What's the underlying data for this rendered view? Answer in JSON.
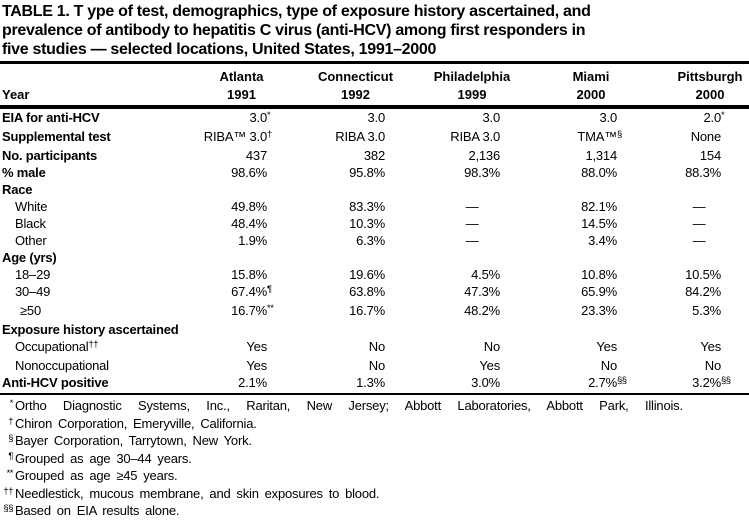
{
  "colors": {
    "text": "#000000",
    "background": "#ffffff",
    "rule": "#000000"
  },
  "table": {
    "title_lines": [
      "TABLE 1. T ype of test, demographics, type of exposure history ascertained, and",
      "prevalence of antibody to hepatitis C virus (anti-HCV) among first responders in",
      "five studies — selected locations, United States, 1991–2000"
    ],
    "row_header_label": "Year",
    "columns": [
      {
        "location": "Atlanta",
        "year": "1991"
      },
      {
        "location": "Connecticut",
        "year": "1992"
      },
      {
        "location": "Philadelphia",
        "year": "1999"
      },
      {
        "location": "Miami",
        "year": "2000"
      },
      {
        "location": "Pittsburgh",
        "year": "2000"
      }
    ],
    "rows": [
      {
        "label": "EIA for anti-HCV",
        "style": "bold",
        "values": [
          "3.0^*",
          "3.0",
          "3.0",
          "3.0",
          "2.0^*"
        ]
      },
      {
        "label": "Supplemental test",
        "style": "bold",
        "values": [
          "RIBA™ 3.0^†",
          "RIBA 3.0",
          "RIBA 3.0",
          "TMA™^§",
          "None"
        ]
      },
      {
        "label": "No. participants",
        "style": "bold",
        "values": [
          "437",
          "382",
          "2,136",
          "1,314",
          "154"
        ]
      },
      {
        "label": "% male",
        "style": "bold",
        "values": [
          "98.6%",
          "95.8%",
          "98.3%",
          "88.0%",
          "88.3%"
        ]
      },
      {
        "label": "Race",
        "style": "bold",
        "values": [
          "",
          "",
          "",
          "",
          ""
        ]
      },
      {
        "label": "White",
        "style": "indent",
        "values": [
          "49.8%",
          "83.3%",
          "—",
          "82.1%",
          "—"
        ]
      },
      {
        "label": "Black",
        "style": "indent",
        "values": [
          "48.4%",
          "10.3%",
          "—",
          "14.5%",
          "—"
        ]
      },
      {
        "label": "Other",
        "style": "indent",
        "values": [
          "1.9%",
          "6.3%",
          "—",
          "3.4%",
          "—"
        ]
      },
      {
        "label": "Age (yrs)",
        "style": "bold",
        "values": [
          "",
          "",
          "",
          "",
          ""
        ]
      },
      {
        "label": "18–29",
        "style": "indent",
        "values": [
          "15.8%",
          "19.6%",
          "4.5%",
          "10.8%",
          "10.5%"
        ]
      },
      {
        "label": "30–49",
        "style": "indent",
        "values": [
          "67.4%^¶",
          "63.8%",
          "47.3%",
          "65.9%",
          "84.2%"
        ]
      },
      {
        "label": "≥50",
        "style": "indent2",
        "values": [
          "16.7%^**",
          "16.7%",
          "48.2%",
          "23.3%",
          "5.3%"
        ]
      },
      {
        "label": "Exposure history ascertained",
        "style": "bold",
        "values": [
          "",
          "",
          "",
          "",
          ""
        ]
      },
      {
        "label": "Occupational^††",
        "style": "indent",
        "values": [
          "Yes",
          "No",
          "No",
          "Yes",
          "Yes"
        ]
      },
      {
        "label": "Nonoccupational",
        "style": "indent",
        "values": [
          "Yes",
          "No",
          "Yes",
          "No",
          "No"
        ]
      },
      {
        "label": "Anti-HCV positive",
        "style": "bold",
        "values": [
          "2.1%",
          "1.3%",
          "3.0%",
          "2.7%^§§",
          "3.2%^§§"
        ]
      }
    ],
    "footnotes": [
      {
        "marker": "*",
        "text": "Ortho Diagnostic Systems, Inc., Raritan, New Jersey; Abbott Laboratories, Abbott Park, Illinois."
      },
      {
        "marker": "†",
        "text": "Chiron Corporation, Emeryville, California."
      },
      {
        "marker": "§",
        "text": "Bayer Corporation, Tarrytown, New York."
      },
      {
        "marker": "¶",
        "text": "Grouped as age 30–44 years."
      },
      {
        "marker": "**",
        "text": "Grouped as age ≥45 years."
      },
      {
        "marker": "††",
        "text": "Needlestick, mucous membrane, and skin exposures to blood."
      },
      {
        "marker": "§§",
        "text": "Based on EIA results alone."
      }
    ]
  }
}
